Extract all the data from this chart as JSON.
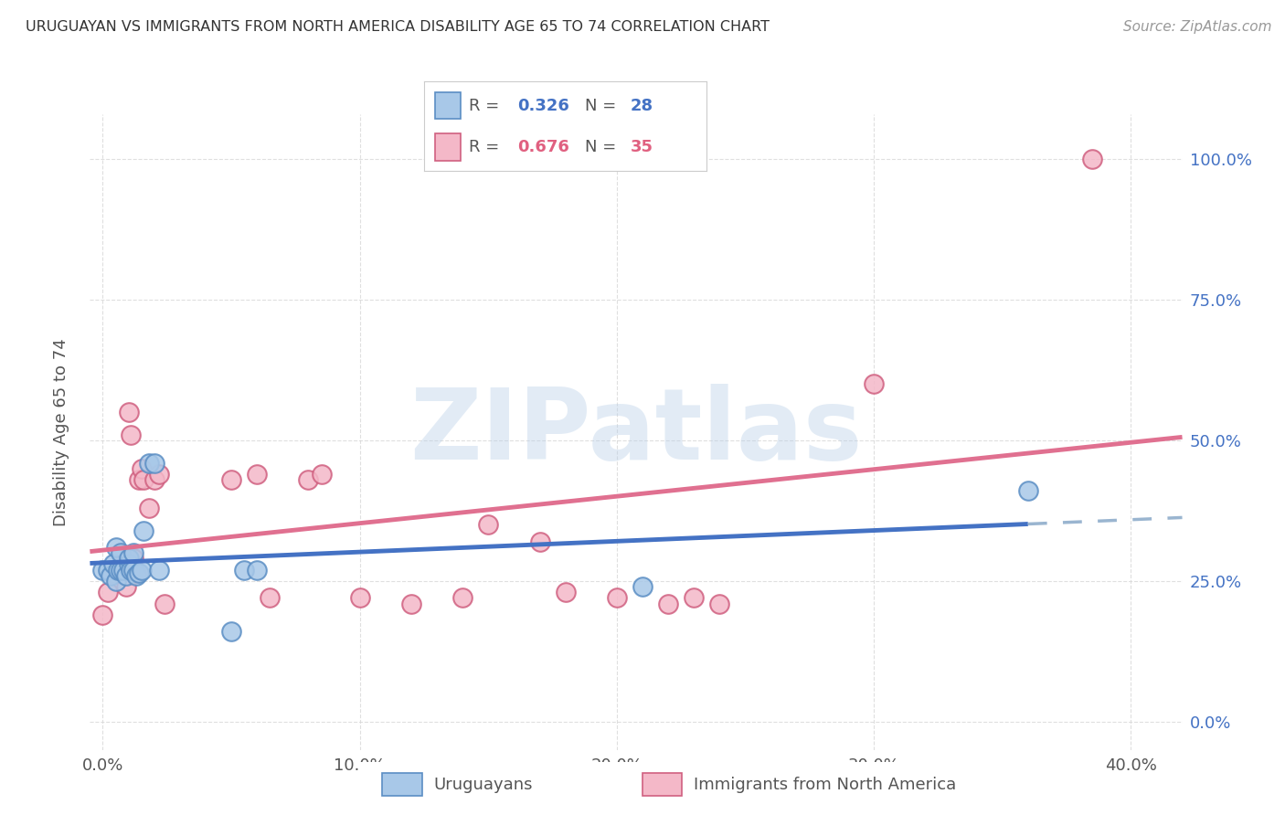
{
  "title": "URUGUAYAN VS IMMIGRANTS FROM NORTH AMERICA DISABILITY AGE 65 TO 74 CORRELATION CHART",
  "source": "Source: ZipAtlas.com",
  "ylabel": "Disability Age 65 to 74",
  "xlim": [
    -0.005,
    0.42
  ],
  "ylim": [
    -0.05,
    1.08
  ],
  "watermark": "ZIPatlas",
  "watermark_color": "#b8cfe8",
  "blue_x": [
    0.0,
    0.002,
    0.003,
    0.004,
    0.005,
    0.005,
    0.006,
    0.007,
    0.007,
    0.008,
    0.009,
    0.01,
    0.01,
    0.011,
    0.012,
    0.012,
    0.013,
    0.014,
    0.015,
    0.016,
    0.018,
    0.02,
    0.022,
    0.05,
    0.055,
    0.06,
    0.21,
    0.36
  ],
  "blue_y": [
    0.27,
    0.27,
    0.26,
    0.28,
    0.25,
    0.31,
    0.27,
    0.27,
    0.3,
    0.27,
    0.26,
    0.28,
    0.29,
    0.27,
    0.27,
    0.3,
    0.26,
    0.265,
    0.27,
    0.34,
    0.46,
    0.46,
    0.27,
    0.16,
    0.27,
    0.27,
    0.24,
    0.41
  ],
  "pink_x": [
    0.0,
    0.002,
    0.004,
    0.006,
    0.007,
    0.008,
    0.009,
    0.01,
    0.011,
    0.012,
    0.013,
    0.014,
    0.015,
    0.016,
    0.018,
    0.02,
    0.022,
    0.024,
    0.05,
    0.06,
    0.065,
    0.08,
    0.085,
    0.1,
    0.12,
    0.14,
    0.15,
    0.17,
    0.18,
    0.2,
    0.22,
    0.23,
    0.24,
    0.3,
    0.385
  ],
  "pink_y": [
    0.19,
    0.23,
    0.265,
    0.27,
    0.27,
    0.28,
    0.24,
    0.55,
    0.51,
    0.29,
    0.265,
    0.43,
    0.45,
    0.43,
    0.38,
    0.43,
    0.44,
    0.21,
    0.43,
    0.44,
    0.22,
    0.43,
    0.44,
    0.22,
    0.21,
    0.22,
    0.35,
    0.32,
    0.23,
    0.22,
    0.21,
    0.22,
    0.21,
    0.6,
    1.0
  ],
  "blue_line_color": "#4472c4",
  "pink_line_color": "#e07090",
  "dashed_line_color": "#9ab5d0",
  "blue_scatter_face": "#a8c8e8",
  "blue_scatter_edge": "#5b8ec4",
  "pink_scatter_face": "#f4b8c8",
  "pink_scatter_edge": "#d06080"
}
